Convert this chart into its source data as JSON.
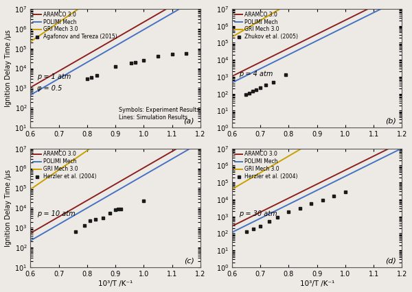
{
  "panels": [
    {
      "label": "(a)",
      "pressure_text": "p = 1 atm",
      "phi_text": "φ = 0.5",
      "extra_text": "Symbols: Experiment Results\nLines: Simulation Results",
      "exp_label": "Agafonov and Tereza (2015)",
      "exp_x": [
        0.8,
        0.815,
        0.835,
        0.9,
        0.955,
        0.97,
        1.0,
        1.05,
        1.1,
        1.15
      ],
      "exp_y": [
        3000,
        3500,
        4500,
        12000,
        18000,
        20000,
        25000,
        40000,
        50000,
        55000
      ],
      "lines": [
        {
          "A": 0.012,
          "Ea": 19.0,
          "color": "#8B2020",
          "label": "ARAMCO 3.0"
        },
        {
          "A": 0.005,
          "Ea": 19.0,
          "color": "#4472C4",
          "label": "POLIMI Mech"
        },
        {
          "A": 0.3,
          "Ea": 22.5,
          "color": "#C8A000",
          "label": "GRI Mech 3.0"
        }
      ],
      "ylim_exp": 0,
      "ylim_min": 10,
      "ylim_max": 10000000.0
    },
    {
      "label": "(b)",
      "pressure_text": "p = 4 atm",
      "phi_text": null,
      "extra_text": null,
      "exp_label": "Zhukov et al. (2005)",
      "exp_x": [
        0.648,
        0.66,
        0.672,
        0.685,
        0.7,
        0.72,
        0.745,
        0.79
      ],
      "exp_y": [
        90,
        110,
        140,
        175,
        220,
        310,
        460,
        1350
      ],
      "lines": [
        {
          "A": 0.012,
          "Ea": 19.0,
          "color": "#8B2020",
          "label": "ARAMCO 3.0"
        },
        {
          "A": 0.005,
          "Ea": 19.0,
          "color": "#4472C4",
          "label": "POLIMI Mech"
        },
        {
          "A": 0.3,
          "Ea": 22.5,
          "color": "#C8A000",
          "label": "GRI Mech 3.0"
        }
      ],
      "ylim_min": 1,
      "ylim_max": 10000000.0
    },
    {
      "label": "(c)",
      "pressure_text": "p = 10 atm",
      "phi_text": null,
      "extra_text": null,
      "exp_label": "Herzler et al. (2004)",
      "exp_x": [
        0.76,
        0.79,
        0.81,
        0.83,
        0.855,
        0.88,
        0.9,
        0.91,
        0.92,
        1.0
      ],
      "exp_y": [
        650,
        1300,
        2200,
        2700,
        3200,
        5500,
        8000,
        8500,
        9000,
        22000
      ],
      "lines": [
        {
          "A": 0.006,
          "Ea": 19.0,
          "color": "#8B2020",
          "label": "ARAMCO 3.0"
        },
        {
          "A": 0.0025,
          "Ea": 19.0,
          "color": "#4472C4",
          "label": "POLIMI Mech"
        },
        {
          "A": 0.12,
          "Ea": 22.5,
          "color": "#C8A000",
          "label": "GRI Mech 3.0"
        }
      ],
      "ylim_min": 10,
      "ylim_max": 10000000.0
    },
    {
      "label": "(d)",
      "pressure_text": "p = 30 atm",
      "phi_text": null,
      "extra_text": null,
      "exp_label": "Herzler et al. (2004)",
      "exp_x": [
        0.65,
        0.675,
        0.7,
        0.73,
        0.76,
        0.8,
        0.84,
        0.88,
        0.92,
        0.96,
        1.0
      ],
      "exp_y": [
        130,
        190,
        270,
        500,
        850,
        1800,
        3000,
        5500,
        9000,
        16000,
        27000
      ],
      "lines": [
        {
          "A": 0.003,
          "Ea": 19.0,
          "color": "#8B2020",
          "label": "ARAMCO 3.0"
        },
        {
          "A": 0.0013,
          "Ea": 19.0,
          "color": "#4472C4",
          "label": "POLIMI Mech"
        },
        {
          "A": 0.055,
          "Ea": 22.5,
          "color": "#C8A000",
          "label": "GRI Mech 3.0"
        }
      ],
      "ylim_min": 1,
      "ylim_max": 10000000.0
    }
  ],
  "exp_color": "#1a1a1a",
  "background_color": "#ede9e4",
  "xlim": [
    0.6,
    1.2
  ],
  "xlabel": "10³/T /K⁻¹",
  "ylabel_left": "Ignition Delay Time /µs",
  "line_width": 1.4
}
